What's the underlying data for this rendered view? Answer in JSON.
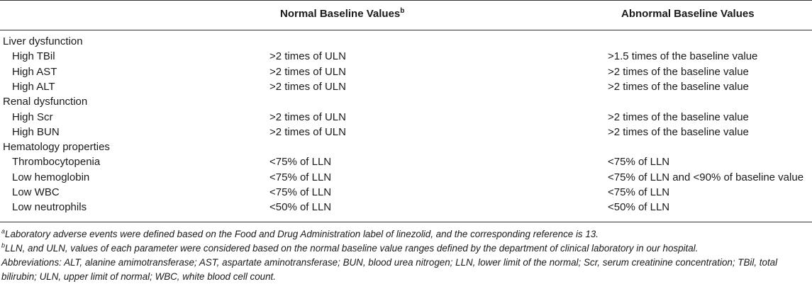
{
  "header": {
    "col1": "",
    "col2": "Normal Baseline Values",
    "col2_sup": "b",
    "col3": "Abnormal Baseline Values"
  },
  "rows": [
    {
      "label": "Liver dysfunction",
      "normal": "",
      "abnormal": "",
      "group": true
    },
    {
      "label": "High TBil",
      "normal": ">2 times of ULN",
      "abnormal": ">1.5 times of the baseline value",
      "group": false
    },
    {
      "label": "High AST",
      "normal": ">2 times of ULN",
      "abnormal": ">2 times of the baseline value",
      "group": false
    },
    {
      "label": "High ALT",
      "normal": ">2 times of ULN",
      "abnormal": ">2 times of the baseline value",
      "group": false
    },
    {
      "label": "Renal dysfunction",
      "normal": "",
      "abnormal": "",
      "group": true
    },
    {
      "label": "High Scr",
      "normal": ">2 times of ULN",
      "abnormal": ">2 times of the baseline value",
      "group": false
    },
    {
      "label": "High BUN",
      "normal": ">2 times of ULN",
      "abnormal": ">2 times of the baseline value",
      "group": false
    },
    {
      "label": "Hematology properties",
      "normal": "",
      "abnormal": "",
      "group": true
    },
    {
      "label": "Thrombocytopenia",
      "normal": "<75% of LLN",
      "abnormal": "<75% of LLN",
      "group": false
    },
    {
      "label": "Low hemoglobin",
      "normal": "<75% of LLN",
      "abnormal": "<75% of LLN and <90% of baseline value",
      "group": false
    },
    {
      "label": "Low WBC",
      "normal": "<75% of LLN",
      "abnormal": "<75% of LLN",
      "group": false
    },
    {
      "label": "Low neutrophils",
      "normal": "<50% of LLN",
      "abnormal": "<50% of LLN",
      "group": false
    }
  ],
  "footnotes": {
    "a_mark": "a",
    "a_text": "Laboratory adverse events were defined based on the Food and Drug Administration label of linezolid, and the corresponding reference is 13.",
    "b_mark": "b",
    "b_text": "LLN, and ULN, values of each parameter were considered based on the normal baseline value ranges defined by the department of clinical laboratory in our hospital.",
    "abbrev_line1": "Abbreviations: ALT, alanine amimotransferase; AST, aspartate aminotransferase; BUN, blood urea nitrogen; LLN, lower limit of the normal; Scr, serum creatinine concentration; TBil, total",
    "abbrev_line2": "bilirubin; ULN, upper limit of normal; WBC, white blood cell count."
  }
}
